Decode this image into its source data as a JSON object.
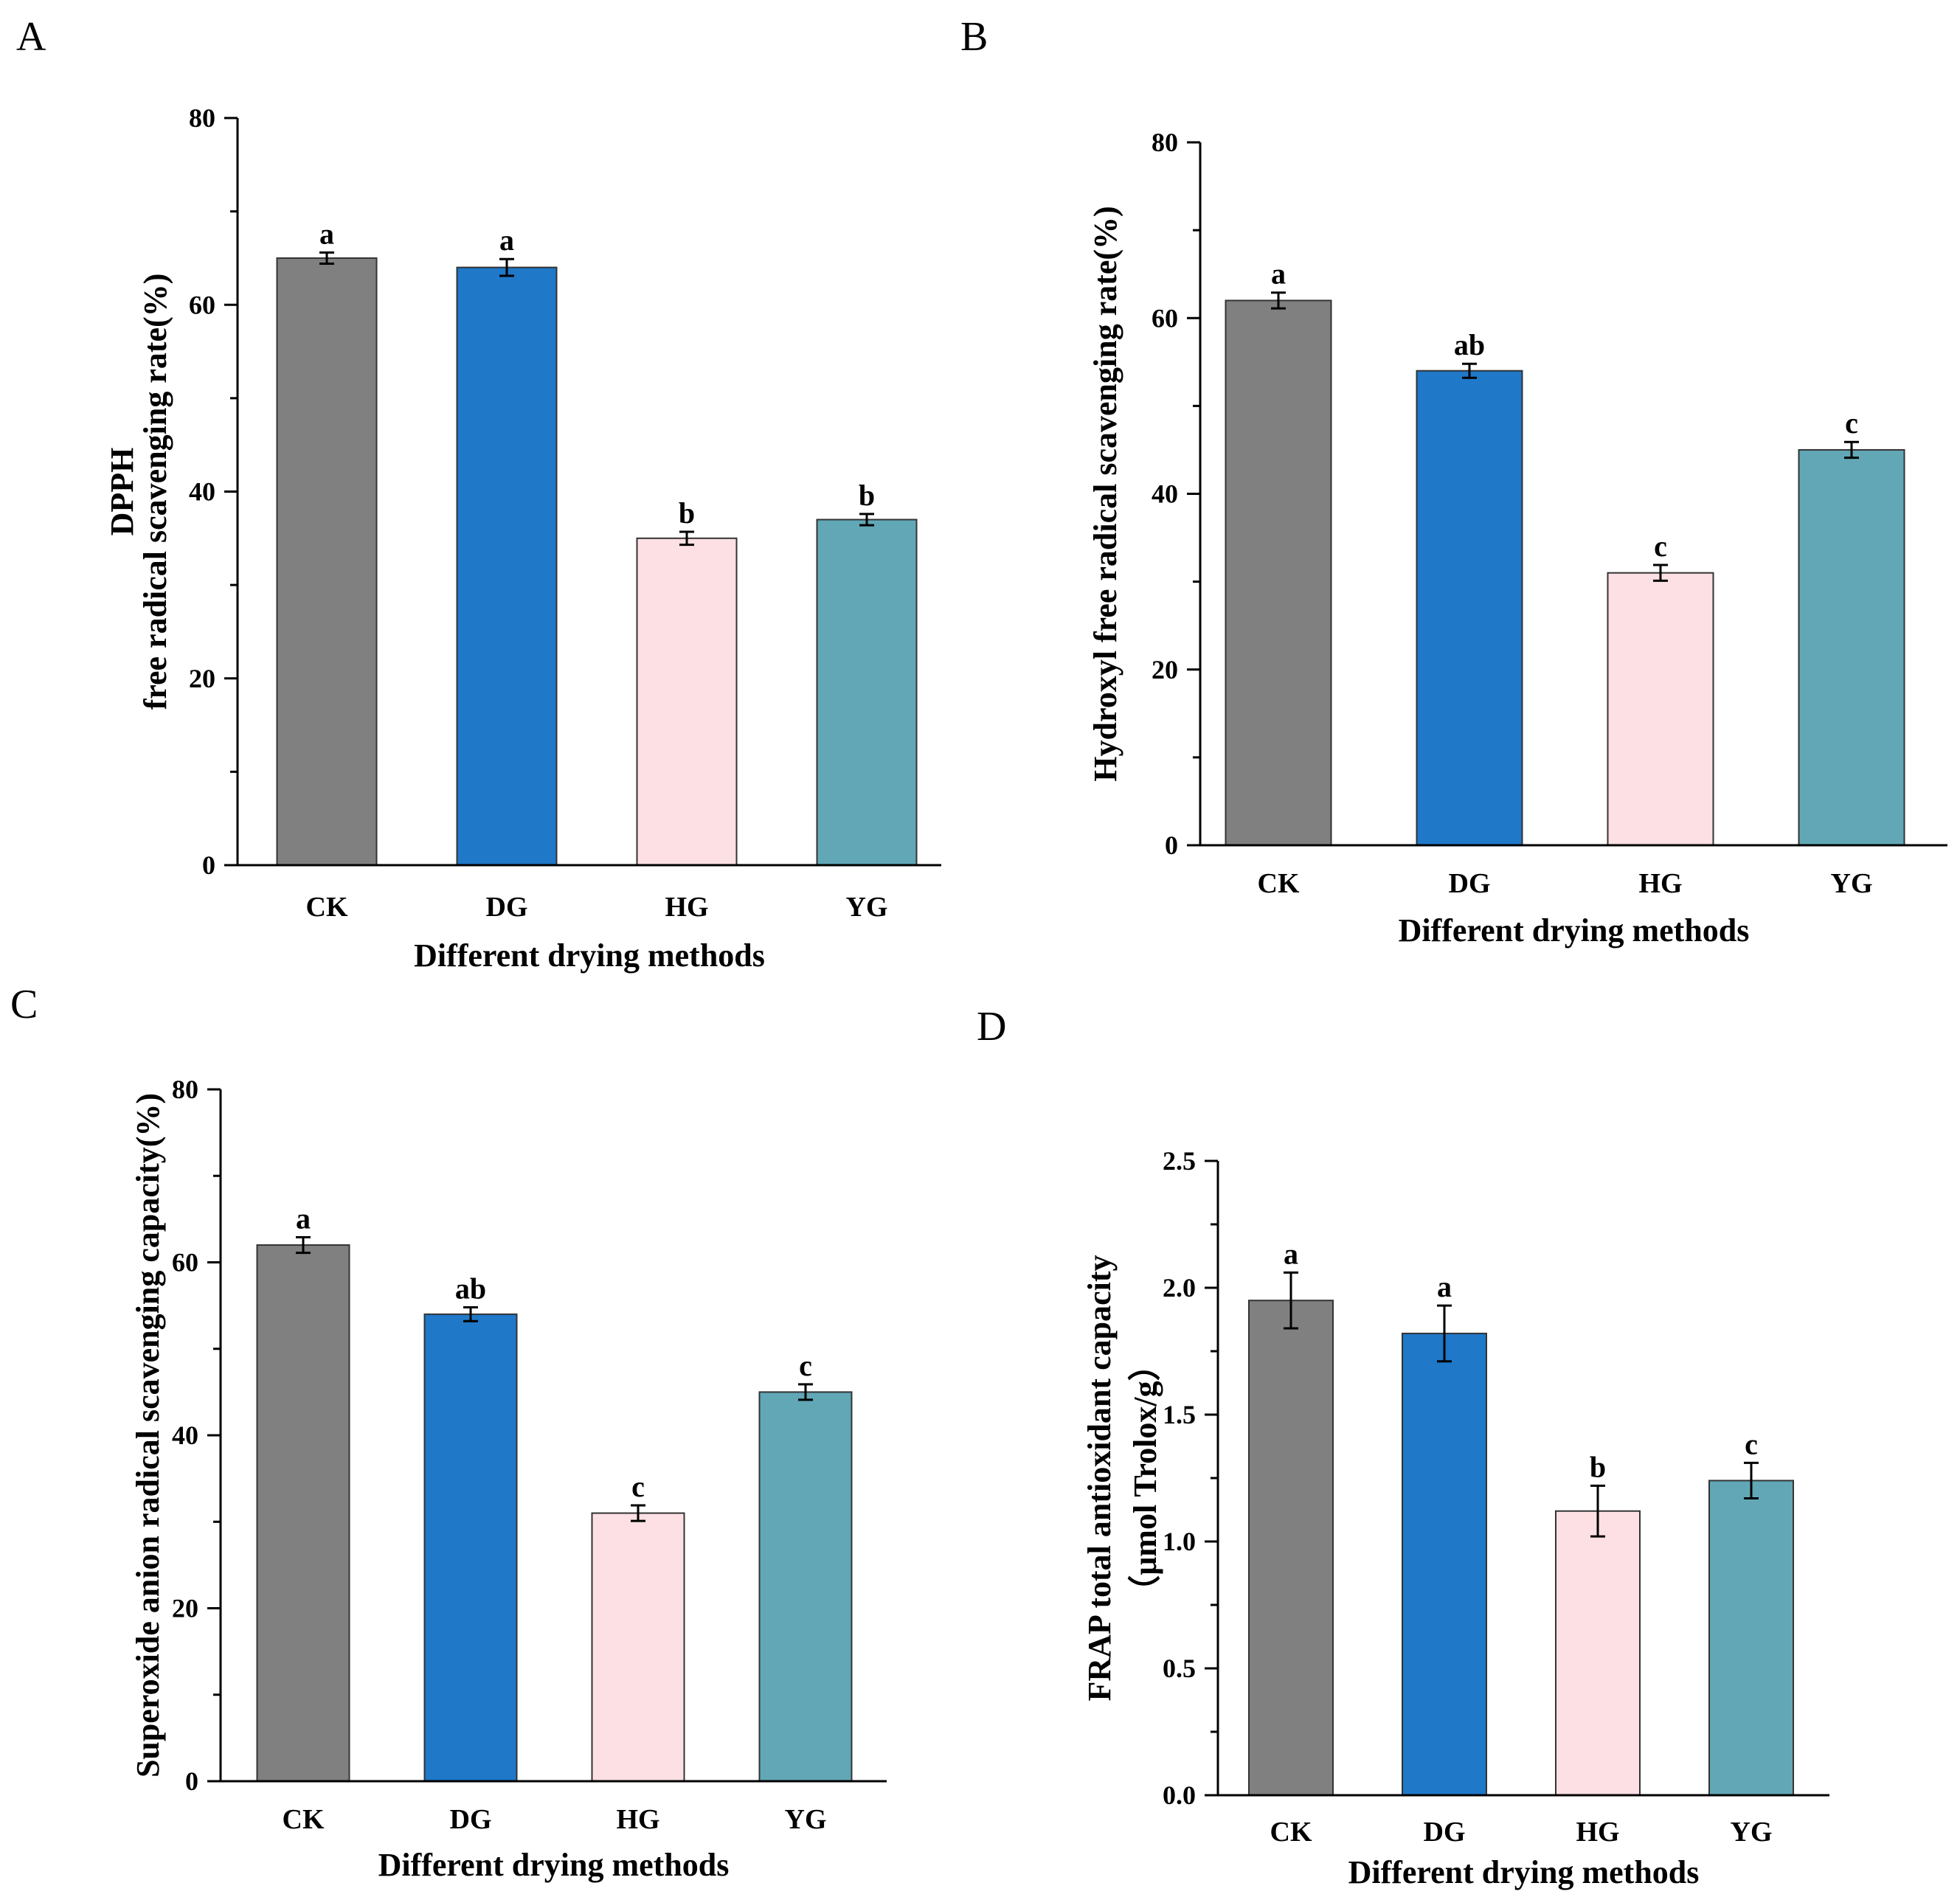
{
  "colors": {
    "CK": "#808080",
    "DG": "#1f78c8",
    "HG": "#fde0e3",
    "YG": "#62a7b6"
  },
  "chart_data": [
    {
      "panel": "A",
      "type": "bar",
      "categories": [
        "CK",
        "DG",
        "HG",
        "YG"
      ],
      "values": [
        65,
        64,
        35,
        37
      ],
      "errors": [
        0.6,
        0.9,
        0.7,
        0.6
      ],
      "significance": [
        "a",
        "a",
        "b",
        "b"
      ],
      "ylabel_lines": [
        "DPPH",
        "free radical scavenging rate(%)"
      ],
      "xlabel": "Different drying methods",
      "ylim": [
        0,
        80
      ],
      "yticks": [
        "0",
        "20",
        "40",
        "60",
        "80"
      ],
      "ytick_values": [
        0,
        20,
        40,
        60,
        80
      ]
    },
    {
      "panel": "B",
      "type": "bar",
      "categories": [
        "CK",
        "DG",
        "HG",
        "YG"
      ],
      "values": [
        62,
        54,
        31,
        45
      ],
      "errors": [
        0.9,
        0.8,
        0.9,
        0.9
      ],
      "significance": [
        "a",
        "ab",
        "c",
        "c"
      ],
      "ylabel_lines": [
        "Hydroxyl free radical scavenging rate(%)"
      ],
      "xlabel": "Different drying methods",
      "ylim": [
        0,
        80
      ],
      "yticks": [
        "0",
        "20",
        "40",
        "60",
        "80"
      ],
      "ytick_values": [
        0,
        20,
        40,
        60,
        80
      ]
    },
    {
      "panel": "C",
      "type": "bar",
      "categories": [
        "CK",
        "DG",
        "HG",
        "YG"
      ],
      "values": [
        62,
        54,
        31,
        45
      ],
      "errors": [
        0.9,
        0.8,
        0.9,
        0.9
      ],
      "significance": [
        "a",
        "ab",
        "c",
        "c"
      ],
      "ylabel_lines": [
        "Superoxide anion radical scavenging capacity(%)"
      ],
      "xlabel": "Different drying methods",
      "ylim": [
        0,
        80
      ],
      "yticks": [
        "0",
        "20",
        "40",
        "60",
        "80"
      ],
      "ytick_values": [
        0,
        20,
        40,
        60,
        80
      ]
    },
    {
      "panel": "D",
      "type": "bar",
      "categories": [
        "CK",
        "DG",
        "HG",
        "YG"
      ],
      "values": [
        1.95,
        1.82,
        1.12,
        1.24
      ],
      "errors": [
        0.11,
        0.11,
        0.1,
        0.07
      ],
      "significance": [
        "a",
        "a",
        "b",
        "c"
      ],
      "ylabel_lines": [
        "FRAP total antioxidant capacity",
        "（μmol Trolox/g）"
      ],
      "xlabel": "Different drying methods",
      "ylim": [
        0,
        2.5
      ],
      "yticks": [
        "0.0",
        "0.5",
        "1.0",
        "1.5",
        "2.0",
        "2.5"
      ],
      "ytick_values": [
        0,
        0.5,
        1.0,
        1.5,
        2.0,
        2.5
      ]
    }
  ]
}
